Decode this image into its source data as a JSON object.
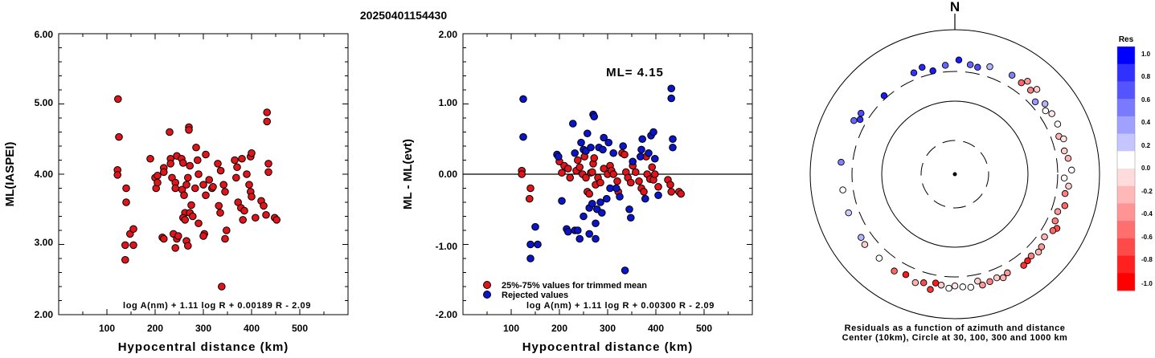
{
  "header": {
    "title": "20250401154430"
  },
  "chart_data": [
    {
      "type": "scatter",
      "title": "",
      "xlabel": "Hypocentral distance (km)",
      "ylabel": "ML(IASPEI)",
      "xlim": [
        0,
        600
      ],
      "ylim": [
        2.0,
        6.0
      ],
      "x_ticks": [
        "100",
        "200",
        "300",
        "400",
        "500"
      ],
      "y_ticks": [
        "2.00",
        "3.00",
        "4.00",
        "5.00",
        "6.00"
      ],
      "formula": "log A(nm) + 1.11 log R + 0.00189 R - 2.09",
      "marker_color": "#e0141a",
      "points": [
        [
          123,
          5.07
        ],
        [
          125,
          4.53
        ],
        [
          122,
          4.06
        ],
        [
          122,
          3.99
        ],
        [
          140,
          3.8
        ],
        [
          140,
          3.6
        ],
        [
          148,
          3.15
        ],
        [
          155,
          3.22
        ],
        [
          138,
          2.99
        ],
        [
          155,
          2.99
        ],
        [
          138,
          2.78
        ],
        [
          190,
          4.22
        ],
        [
          200,
          3.95
        ],
        [
          202,
          3.8
        ],
        [
          205,
          3.88
        ],
        [
          205,
          3.98
        ],
        [
          218,
          4.09
        ],
        [
          218,
          4.03
        ],
        [
          215,
          3.1
        ],
        [
          218,
          3.08
        ],
        [
          230,
          4.6
        ],
        [
          232,
          4.22
        ],
        [
          232,
          4.15
        ],
        [
          235,
          3.95
        ],
        [
          242,
          3.88
        ],
        [
          242,
          3.8
        ],
        [
          245,
          4.26
        ],
        [
          238,
          3.15
        ],
        [
          242,
          2.95
        ],
        [
          245,
          3.08
        ],
        [
          248,
          3.12
        ],
        [
          255,
          4.22
        ],
        [
          258,
          4.16
        ],
        [
          256,
          3.78
        ],
        [
          260,
          3.7
        ],
        [
          262,
          3.45
        ],
        [
          258,
          3.38
        ],
        [
          262,
          3.35
        ],
        [
          265,
          3.05
        ],
        [
          268,
          2.98
        ],
        [
          270,
          4.67
        ],
        [
          270,
          4.63
        ],
        [
          272,
          4.12
        ],
        [
          268,
          3.95
        ],
        [
          265,
          3.85
        ],
        [
          275,
          3.56
        ],
        [
          272,
          3.45
        ],
        [
          278,
          3.4
        ],
        [
          285,
          4.38
        ],
        [
          288,
          4.2
        ],
        [
          290,
          4.0
        ],
        [
          283,
          3.8
        ],
        [
          290,
          3.3
        ],
        [
          305,
          4.28
        ],
        [
          300,
          3.85
        ],
        [
          305,
          3.7
        ],
        [
          302,
          3.15
        ],
        [
          300,
          3.12
        ],
        [
          312,
          3.92
        ],
        [
          318,
          3.8
        ],
        [
          320,
          3.82
        ],
        [
          330,
          4.15
        ],
        [
          336,
          4.05
        ],
        [
          332,
          3.55
        ],
        [
          335,
          3.45
        ],
        [
          338,
          2.4
        ],
        [
          342,
          3.85
        ],
        [
          345,
          3.75
        ],
        [
          345,
          3.08
        ],
        [
          348,
          3.2
        ],
        [
          365,
          4.2
        ],
        [
          370,
          4.1
        ],
        [
          368,
          3.95
        ],
        [
          372,
          3.6
        ],
        [
          378,
          3.52
        ],
        [
          380,
          4.22
        ],
        [
          382,
          3.35
        ],
        [
          385,
          3.48
        ],
        [
          390,
          4.0
        ],
        [
          395,
          3.85
        ],
        [
          398,
          4.25
        ],
        [
          400,
          4.3
        ],
        [
          398,
          3.75
        ],
        [
          400,
          3.68
        ],
        [
          408,
          3.38
        ],
        [
          420,
          3.62
        ],
        [
          425,
          3.55
        ],
        [
          432,
          4.88
        ],
        [
          432,
          4.75
        ],
        [
          435,
          4.15
        ],
        [
          435,
          4.03
        ],
        [
          430,
          3.42
        ],
        [
          448,
          3.38
        ],
        [
          452,
          3.35
        ]
      ]
    },
    {
      "type": "scatter",
      "title": "",
      "xlabel": "Hypocentral distance (km)",
      "ylabel": "ML - ML(evt)",
      "xlim": [
        0,
        600
      ],
      "ylim": [
        -2.0,
        2.0
      ],
      "x_ticks": [
        "100",
        "200",
        "300",
        "400",
        "500"
      ],
      "y_ticks": [
        "-2.00",
        "-1.00",
        "0.00",
        "1.00",
        "2.00"
      ],
      "annotation": "ML= 4.15",
      "formula": "log A(nm) + 1.11 log R + 0.00300 R - 2.09",
      "reference_line": 0.0,
      "series": [
        {
          "name": "25%-75% values for trimmed mean",
          "color": "#e0141a",
          "points": [
            [
              122,
              0.05
            ],
            [
              122,
              0.0
            ],
            [
              140,
              -0.2
            ],
            [
              138,
              -0.35
            ],
            [
              200,
              0.18
            ],
            [
              205,
              0.02
            ],
            [
              210,
              0.12
            ],
            [
              218,
              0.08
            ],
            [
              222,
              -0.05
            ],
            [
              235,
              0.05
            ],
            [
              238,
              0.2
            ],
            [
              242,
              0.1
            ],
            [
              248,
              0.0
            ],
            [
              252,
              0.25
            ],
            [
              255,
              -0.05
            ],
            [
              258,
              -0.25
            ],
            [
              262,
              -0.28
            ],
            [
              265,
              0.02
            ],
            [
              268,
              0.03
            ],
            [
              270,
              0.15
            ],
            [
              272,
              0.23
            ],
            [
              275,
              -0.15
            ],
            [
              280,
              -0.05
            ],
            [
              285,
              -0.12
            ],
            [
              292,
              0.08
            ],
            [
              300,
              0.0
            ],
            [
              305,
              0.12
            ],
            [
              308,
              0.05
            ],
            [
              312,
              0.0
            ],
            [
              320,
              -0.1
            ],
            [
              322,
              -0.25
            ],
            [
              330,
              0.3
            ],
            [
              335,
              0.28
            ],
            [
              338,
              0.03
            ],
            [
              342,
              -0.05
            ],
            [
              348,
              -0.12
            ],
            [
              352,
              0.12
            ],
            [
              358,
              0.03
            ],
            [
              365,
              -0.1
            ],
            [
              370,
              -0.2
            ],
            [
              375,
              -0.25
            ],
            [
              380,
              0.25
            ],
            [
              382,
              0.0
            ],
            [
              388,
              -0.07
            ],
            [
              392,
              0.1
            ],
            [
              395,
              -0.08
            ],
            [
              398,
              0.0
            ],
            [
              405,
              -0.18
            ],
            [
              425,
              -0.08
            ],
            [
              430,
              -0.15
            ],
            [
              432,
              -0.25
            ],
            [
              448,
              -0.25
            ],
            [
              452,
              -0.28
            ]
          ]
        },
        {
          "name": "Rejected values",
          "color": "#0a14c8",
          "points": [
            [
              125,
              1.07
            ],
            [
              125,
              0.53
            ],
            [
              140,
              -1.0
            ],
            [
              155,
              -1.0
            ],
            [
              150,
              -0.75
            ],
            [
              140,
              -1.2
            ],
            [
              195,
              0.28
            ],
            [
              198,
              0.25
            ],
            [
              205,
              -0.38
            ],
            [
              215,
              -0.78
            ],
            [
              218,
              -0.82
            ],
            [
              228,
              0.72
            ],
            [
              232,
              -0.8
            ],
            [
              232,
              0.3
            ],
            [
              238,
              -0.8
            ],
            [
              242,
              -0.92
            ],
            [
              245,
              0.45
            ],
            [
              250,
              0.35
            ],
            [
              250,
              -0.6
            ],
            [
              255,
              0.33
            ],
            [
              258,
              0.58
            ],
            [
              262,
              -0.48
            ],
            [
              262,
              -0.85
            ],
            [
              265,
              0.38
            ],
            [
              268,
              -0.42
            ],
            [
              270,
              0.85
            ],
            [
              272,
              0.82
            ],
            [
              275,
              -0.92
            ],
            [
              275,
              -0.7
            ],
            [
              278,
              -0.5
            ],
            [
              282,
              0.38
            ],
            [
              285,
              -0.4
            ],
            [
              288,
              -0.55
            ],
            [
              290,
              0.35
            ],
            [
              292,
              0.52
            ],
            [
              298,
              -0.35
            ],
            [
              302,
              0.45
            ],
            [
              305,
              -0.2
            ],
            [
              312,
              0.3
            ],
            [
              318,
              -0.2
            ],
            [
              325,
              -0.32
            ],
            [
              332,
              0.4
            ],
            [
              336,
              -1.37
            ],
            [
              345,
              -0.5
            ],
            [
              348,
              -0.62
            ],
            [
              352,
              0.18
            ],
            [
              368,
              0.25
            ],
            [
              370,
              0.35
            ],
            [
              372,
              0.5
            ],
            [
              378,
              -0.35
            ],
            [
              385,
              0.3
            ],
            [
              390,
              0.55
            ],
            [
              395,
              0.6
            ],
            [
              398,
              0.22
            ],
            [
              405,
              -0.3
            ],
            [
              432,
              1.22
            ],
            [
              432,
              1.08
            ],
            [
              435,
              0.5
            ],
            [
              435,
              0.38
            ]
          ]
        }
      ]
    }
  ],
  "polar_plot": {
    "north_label": "N",
    "caption_line1": "Residuals as a function of azimuth and distance",
    "caption_line2": "Center (10km), Circle at 30, 100, 300 and 1000 km",
    "colorbar": {
      "title": "Res",
      "ticks": [
        "1.0",
        "0.8",
        "0.6",
        "0.4",
        "0.2",
        "0.0",
        "-0.2",
        "-0.4",
        "-0.6",
        "-0.8",
        "-1.0"
      ],
      "colors": [
        "#0000ff",
        "#3030ff",
        "#5555ff",
        "#7a7aff",
        "#a0a0ff",
        "#c5c5ff",
        "#ffffff",
        "#ffdcdc",
        "#ffb8b8",
        "#ff9494",
        "#ff6f6f",
        "#ff4a4a",
        "#ff2020",
        "#ff0000"
      ]
    },
    "stations": [
      [
        355,
        0.89,
        0.6
      ],
      [
        2,
        0.93,
        0.9
      ],
      [
        8,
        0.9,
        0.6
      ],
      [
        12,
        0.89,
        0.7
      ],
      [
        18,
        0.92,
        0.3
      ],
      [
        30,
        0.93,
        0.5
      ],
      [
        36,
        0.92,
        -0.6
      ],
      [
        38,
        0.96,
        -0.4
      ],
      [
        42,
        0.92,
        -0.5
      ],
      [
        44,
        0.96,
        -0.2
      ],
      [
        48,
        0.88,
        0.4
      ],
      [
        52,
        0.93,
        0.3
      ],
      [
        55,
        0.9,
        0.0
      ],
      [
        58,
        0.93,
        -0.1
      ],
      [
        64,
        0.93,
        0.0
      ],
      [
        70,
        0.9,
        -0.3
      ],
      [
        72,
        0.93,
        -0.1
      ],
      [
        78,
        0.91,
        -0.2
      ],
      [
        82,
        0.93,
        -0.3
      ],
      [
        88,
        0.95,
        0.0
      ],
      [
        92,
        0.89,
        0.0
      ],
      [
        96,
        0.93,
        -0.2
      ],
      [
        100,
        0.91,
        -0.5
      ],
      [
        106,
        0.93,
        -0.6
      ],
      [
        110,
        0.89,
        -0.4
      ],
      [
        115,
        0.9,
        -0.5
      ],
      [
        118,
        0.94,
        -0.7
      ],
      [
        120,
        0.92,
        -0.6
      ],
      [
        125,
        0.89,
        -0.3
      ],
      [
        130,
        0.92,
        -0.4
      ],
      [
        133,
        0.93,
        -0.3
      ],
      [
        137,
        0.91,
        -0.5
      ],
      [
        140,
        0.92,
        -0.9
      ],
      [
        143,
        0.93,
        -0.8
      ],
      [
        152,
        0.91,
        -0.4
      ],
      [
        155,
        0.93,
        -0.3
      ],
      [
        158,
        0.91,
        -0.2
      ],
      [
        162,
        0.92,
        -0.5
      ],
      [
        166,
        0.93,
        -0.4
      ],
      [
        168,
        0.89,
        -0.2
      ],
      [
        172,
        0.93,
        0.0
      ],
      [
        176,
        0.92,
        0.0
      ],
      [
        180,
        0.91,
        -0.1
      ],
      [
        183,
        0.93,
        0.0
      ],
      [
        187,
        0.91,
        -0.2
      ],
      [
        190,
        0.9,
        -0.9
      ],
      [
        192,
        0.96,
        -0.8
      ],
      [
        196,
        0.92,
        -0.7
      ],
      [
        200,
        0.94,
        -0.3
      ],
      [
        206,
        0.91,
        -0.9
      ],
      [
        212,
        0.93,
        -0.6
      ],
      [
        222,
        0.92,
        0.0
      ],
      [
        232,
        0.93,
        -0.2
      ],
      [
        236,
        0.92,
        0.3
      ],
      [
        250,
        0.92,
        0.2
      ],
      [
        262,
        0.92,
        0.0
      ],
      [
        276,
        0.93,
        0.5
      ],
      [
        298,
        0.93,
        0.6
      ],
      [
        300,
        0.89,
        0.8
      ],
      [
        303,
        0.91,
        0.7
      ],
      [
        318,
        0.86,
        0.9
      ],
      [
        338,
        0.89,
        0.8
      ],
      [
        343,
        0.91,
        0.85
      ],
      [
        348,
        0.86,
        0.9
      ]
    ]
  }
}
